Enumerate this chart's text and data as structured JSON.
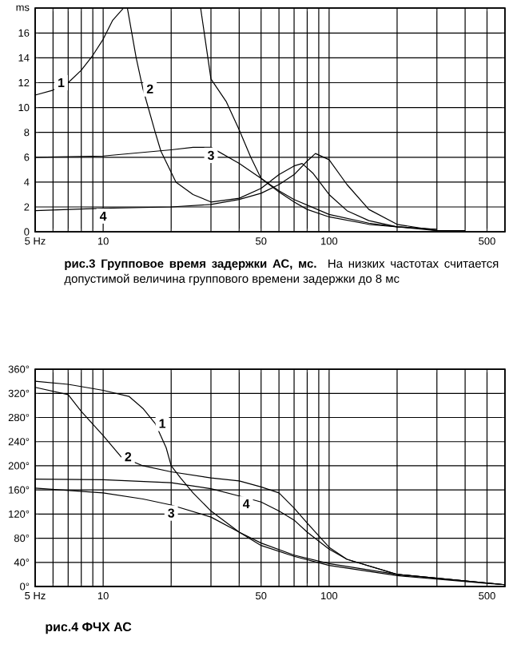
{
  "chart_data": [
    {
      "type": "line",
      "title": "рис.3 Групповое время задержки АС, мс.",
      "subtitle": "На низких частотах считается допустимой величина группового времени задержки до 8 мс",
      "log": "x",
      "grid": true,
      "marker": "none",
      "line_style": "solid",
      "xlim": [
        5,
        600
      ],
      "ylim": [
        0,
        18
      ],
      "xticks": [
        {
          "value": 5,
          "label": "5 Hz"
        },
        {
          "value": 6,
          "label": null
        },
        {
          "value": 7,
          "label": null
        },
        {
          "value": 8,
          "label": null
        },
        {
          "value": 9,
          "label": null
        },
        10,
        {
          "value": 20,
          "label": null
        },
        {
          "value": 30,
          "label": null
        },
        {
          "value": 40,
          "label": null
        },
        50,
        {
          "value": 60,
          "label": null
        },
        {
          "value": 70,
          "label": null
        },
        {
          "value": 80,
          "label": null
        },
        {
          "value": 90,
          "label": null
        },
        100,
        {
          "value": 200,
          "label": null
        },
        {
          "value": 300,
          "label": null
        },
        {
          "value": 400,
          "label": null
        },
        500,
        {
          "value": 600,
          "label": null
        }
      ],
      "yticks": [
        0,
        2,
        4,
        6,
        8,
        10,
        12,
        14,
        16,
        {
          "value": 18,
          "label": "ms"
        }
      ],
      "series": [
        {
          "name": "1",
          "color": "#000000",
          "x": [
            5,
            6,
            7,
            8,
            9,
            10,
            11,
            12.3,
            20,
            27,
            30,
            35,
            40,
            45,
            50,
            60,
            70,
            80,
            100,
            150,
            200,
            300
          ],
          "values": [
            11,
            11.4,
            12,
            13,
            14.2,
            15.5,
            17,
            18,
            null,
            18,
            12.3,
            10.5,
            8.2,
            6,
            4.3,
            3.2,
            2.4,
            1.8,
            1.2,
            0.6,
            0.4,
            0.2
          ]
        },
        {
          "name": "2",
          "color": "#000000",
          "x": [
            12.8,
            14,
            15,
            17,
            18,
            21,
            25,
            30,
            40,
            50,
            60,
            70,
            76,
            85,
            100,
            120,
            150,
            200,
            300
          ],
          "values": [
            18,
            14,
            11.5,
            8,
            6.5,
            4,
            3,
            2.4,
            2.7,
            3.5,
            4.6,
            5.3,
            5.5,
            4.7,
            3,
            1.7,
            0.9,
            0.4,
            0.1
          ]
        },
        {
          "name": "3",
          "color": "#000000",
          "x": [
            5,
            10,
            20,
            25,
            30,
            40,
            50,
            60,
            70,
            100,
            150,
            200,
            300
          ],
          "values": [
            6,
            6.1,
            6.6,
            6.8,
            6.8,
            5.5,
            4.3,
            3.3,
            2.6,
            1.4,
            0.7,
            0.4,
            0.2
          ]
        },
        {
          "name": "4",
          "color": "#000000",
          "x": [
            5,
            10,
            20,
            30,
            40,
            50,
            60,
            70,
            80,
            87,
            100,
            120,
            150,
            200,
            300,
            400
          ],
          "values": [
            1.7,
            1.9,
            2,
            2.2,
            2.6,
            3.1,
            3.8,
            4.6,
            5.7,
            6.3,
            5.8,
            3.8,
            1.8,
            0.6,
            0.1,
            0.1
          ]
        }
      ]
    },
    {
      "type": "line",
      "title": "рис.4 ФЧХ АС",
      "log": "x",
      "grid": true,
      "marker": "none",
      "line_style": "solid",
      "xlim": [
        5,
        600
      ],
      "ylim": [
        0,
        360
      ],
      "xticks": [
        {
          "value": 5,
          "label": "5 Hz"
        },
        {
          "value": 6,
          "label": null
        },
        {
          "value": 7,
          "label": null
        },
        {
          "value": 8,
          "label": null
        },
        {
          "value": 9,
          "label": null
        },
        10,
        {
          "value": 20,
          "label": null
        },
        {
          "value": 30,
          "label": null
        },
        {
          "value": 40,
          "label": null
        },
        50,
        {
          "value": 60,
          "label": null
        },
        {
          "value": 70,
          "label": null
        },
        {
          "value": 80,
          "label": null
        },
        {
          "value": 90,
          "label": null
        },
        100,
        {
          "value": 200,
          "label": null
        },
        {
          "value": 300,
          "label": null
        },
        {
          "value": 400,
          "label": null
        },
        500,
        {
          "value": 600,
          "label": null
        }
      ],
      "yticks": [
        {
          "value": 0,
          "label": "0°"
        },
        {
          "value": 40,
          "label": "40°"
        },
        {
          "value": 80,
          "label": "80°"
        },
        {
          "value": 120,
          "label": "120°"
        },
        {
          "value": 160,
          "label": "160°"
        },
        {
          "value": 200,
          "label": "200°"
        },
        {
          "value": 240,
          "label": "240°"
        },
        {
          "value": 280,
          "label": "280°"
        },
        {
          "value": 320,
          "label": "320°"
        },
        {
          "value": 360,
          "label": "360°"
        }
      ],
      "series": [
        {
          "name": "1",
          "color": "#000000",
          "x": [
            5,
            7,
            10,
            13,
            15,
            17,
            19,
            20,
            22,
            25,
            30,
            40,
            50,
            70,
            100,
            200,
            500,
            600
          ],
          "values": [
            340,
            335,
            325,
            315,
            295,
            270,
            230,
            200,
            180,
            155,
            125,
            90,
            68,
            50,
            35,
            18,
            5,
            3
          ]
        },
        {
          "name": "2",
          "color": "#000000",
          "x": [
            5,
            7,
            8,
            10,
            12,
            15,
            20,
            30,
            40,
            50,
            60,
            70,
            80,
            100,
            120,
            200,
            600
          ],
          "values": [
            330,
            318,
            290,
            250,
            215,
            200,
            190,
            180,
            175,
            165,
            155,
            130,
            105,
            65,
            45,
            20,
            3
          ]
        },
        {
          "name": "3",
          "color": "#000000",
          "x": [
            5,
            10,
            15,
            20,
            30,
            40,
            50,
            70,
            100,
            200,
            600
          ],
          "values": [
            163,
            155,
            145,
            135,
            115,
            90,
            72,
            52,
            38,
            20,
            3
          ]
        },
        {
          "name": "4",
          "color": "#000000",
          "x": [
            5,
            10,
            20,
            30,
            40,
            50,
            60,
            70,
            80,
            100,
            120,
            200,
            600
          ],
          "values": [
            178,
            177,
            172,
            162,
            150,
            140,
            125,
            110,
            90,
            62,
            45,
            20,
            3
          ]
        }
      ]
    }
  ]
}
